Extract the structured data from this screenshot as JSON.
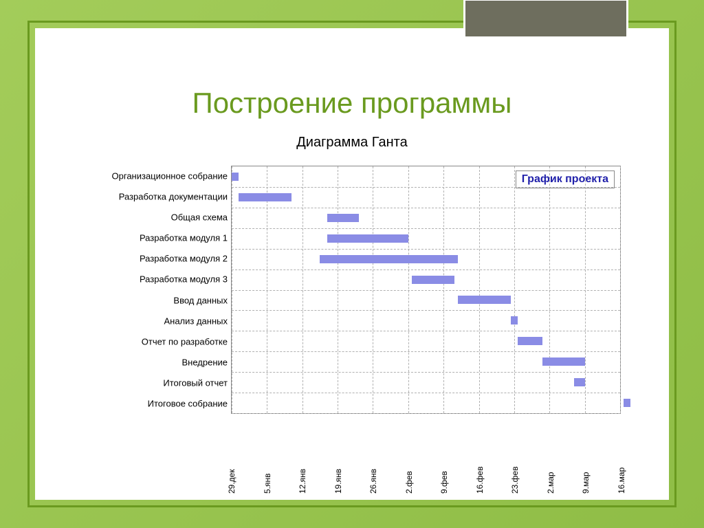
{
  "slide": {
    "title": "Построение программы",
    "chart_title": "Диаграмма Ганта",
    "legend_text": "График проекта"
  },
  "chart": {
    "type": "gantt",
    "background_color": "#ffffff",
    "grid_color": "#b0b0b0",
    "border_color": "#888888",
    "bar_color": "#8a8ce5",
    "label_fontsize": 13,
    "tick_fontsize": 12,
    "legend_color": "#2020aa",
    "x_ticks": [
      "29.дек",
      "5.янв",
      "12.янв",
      "19.янв",
      "26.янв",
      "2.фев",
      "9.фев",
      "16.фев",
      "23.фев",
      "2.мар",
      "9.мар",
      "16.мар"
    ],
    "x_domain": [
      0,
      11
    ],
    "tasks": [
      {
        "label": "Организационное собрание",
        "start": 0.0,
        "end": 0.2
      },
      {
        "label": "Разработка документации",
        "start": 0.2,
        "end": 1.7
      },
      {
        "label": "Общая схема",
        "start": 2.7,
        "end": 3.6
      },
      {
        "label": "Разработка модуля 1",
        "start": 2.7,
        "end": 5.0
      },
      {
        "label": "Разработка модуля 2",
        "start": 2.5,
        "end": 6.4
      },
      {
        "label": "Разработка модуля 3",
        "start": 5.1,
        "end": 6.3
      },
      {
        "label": "Ввод данных",
        "start": 6.4,
        "end": 7.9
      },
      {
        "label": "Анализ данных",
        "start": 7.9,
        "end": 8.1
      },
      {
        "label": "Отчет по разработке",
        "start": 8.1,
        "end": 8.8
      },
      {
        "label": "Внедрение",
        "start": 8.8,
        "end": 10.0
      },
      {
        "label": "Итоговый отчет",
        "start": 9.7,
        "end": 10.0
      },
      {
        "label": "Итоговое собрание",
        "start": 11.1,
        "end": 11.3
      }
    ]
  },
  "theme": {
    "outer_gradient_start": "#a3cc5a",
    "outer_gradient_end": "#8fbd46",
    "frame_border": "#6a9a1f",
    "tab_bg": "#6e6e5e",
    "tab_border": "#ffffff",
    "title_color": "#6a9a1f"
  }
}
